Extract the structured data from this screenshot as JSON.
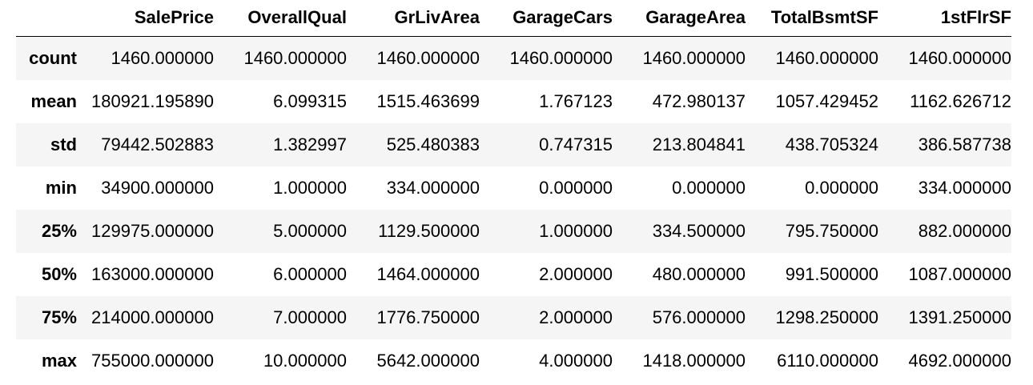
{
  "table": {
    "columns": [
      "SalePrice",
      "OverallQual",
      "GrLivArea",
      "GarageCars",
      "GarageArea",
      "TotalBsmtSF",
      "1stFlrSF"
    ],
    "rows": [
      {
        "label": "count",
        "values": [
          "1460.000000",
          "1460.000000",
          "1460.000000",
          "1460.000000",
          "1460.000000",
          "1460.000000",
          "1460.000000"
        ]
      },
      {
        "label": "mean",
        "values": [
          "180921.195890",
          "6.099315",
          "1515.463699",
          "1.767123",
          "472.980137",
          "1057.429452",
          "1162.626712"
        ]
      },
      {
        "label": "std",
        "values": [
          "79442.502883",
          "1.382997",
          "525.480383",
          "0.747315",
          "213.804841",
          "438.705324",
          "386.587738"
        ]
      },
      {
        "label": "min",
        "values": [
          "34900.000000",
          "1.000000",
          "334.000000",
          "0.000000",
          "0.000000",
          "0.000000",
          "334.000000"
        ]
      },
      {
        "label": "25%",
        "values": [
          "129975.000000",
          "5.000000",
          "1129.500000",
          "1.000000",
          "334.500000",
          "795.750000",
          "882.000000"
        ]
      },
      {
        "label": "50%",
        "values": [
          "163000.000000",
          "6.000000",
          "1464.000000",
          "2.000000",
          "480.000000",
          "991.500000",
          "1087.000000"
        ]
      },
      {
        "label": "75%",
        "values": [
          "214000.000000",
          "7.000000",
          "1776.750000",
          "2.000000",
          "576.000000",
          "1298.250000",
          "1391.250000"
        ]
      },
      {
        "label": "max",
        "values": [
          "755000.000000",
          "10.000000",
          "5642.000000",
          "4.000000",
          "1418.000000",
          "6110.000000",
          "4692.000000"
        ]
      }
    ]
  }
}
